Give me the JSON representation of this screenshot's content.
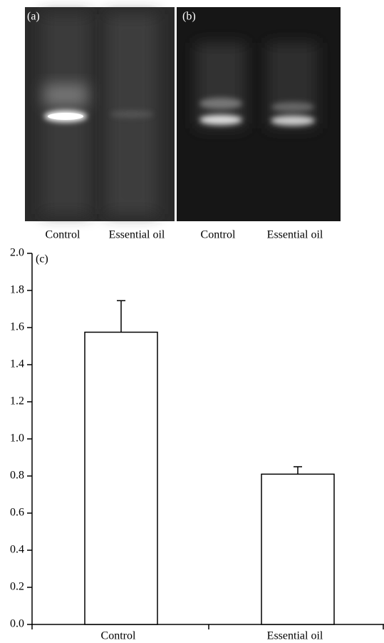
{
  "gels": {
    "panels": [
      {
        "label": "(a)",
        "lanes": [
          "Control",
          "Essential oil"
        ]
      },
      {
        "label": "(b)",
        "lanes": [
          "Control",
          "Essential oil"
        ]
      }
    ]
  },
  "chart_data": {
    "type": "bar",
    "panel_label": "(c)",
    "categories": [
      "Control",
      "Essential oil"
    ],
    "values": [
      1.575,
      0.81
    ],
    "errors": [
      0.17,
      0.04
    ],
    "color": "#ffffff",
    "edge_color": "#000000",
    "ylim": [
      0,
      2.0
    ],
    "yticks": [
      {
        "value": 0,
        "label": "0.0"
      },
      0.2,
      0.4,
      0.6,
      0.8,
      {
        "value": 1,
        "label": "1.0"
      },
      1.2,
      1.4,
      1.6,
      1.8,
      {
        "value": 2,
        "label": "2.0"
      }
    ]
  }
}
